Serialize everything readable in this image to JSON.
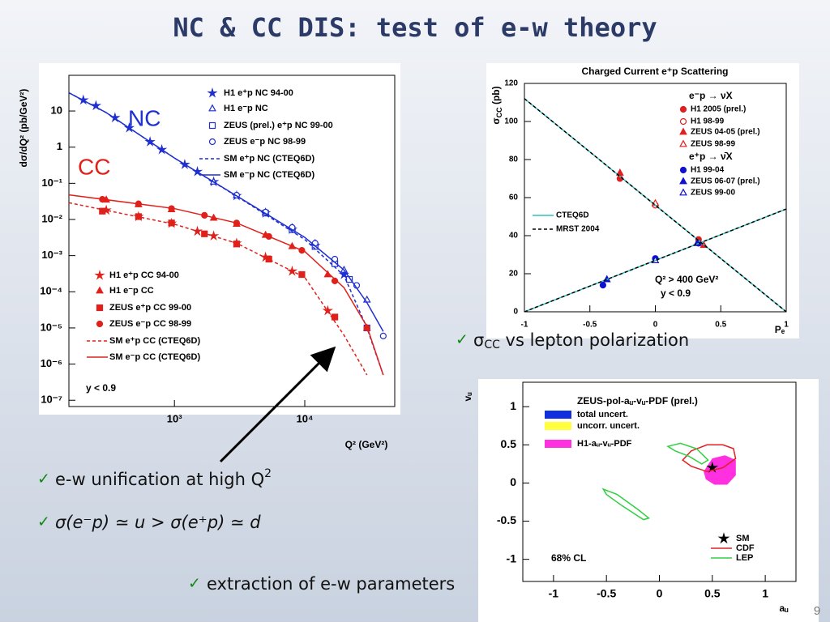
{
  "title": "NC & CC DIS: test of e-w theory",
  "bullets": [
    [
      "σ",
      "CC",
      " vs lepton polarization"
    ],
    [
      "e-w unification at high Q",
      "2"
    ],
    [
      "σ(e⁻p) ≃ u > σ(e⁺p) ≃ d"
    ],
    [
      "extraction of e-w parameters"
    ]
  ],
  "page_number": 9,
  "chart_data": [
    {
      "type": "scatter",
      "xlabel": "Q² (GeV²)",
      "ylabel": "dσ/dQ² (pb/GeV²)",
      "labels": [
        "NC",
        "CC"
      ],
      "annotation": "y < 0.9",
      "xlog": true,
      "ylog": true,
      "xlim": [
        155,
        49000
      ],
      "ylim": [
        6.7e-08,
        97
      ],
      "xticks": [
        {
          "value": 1000,
          "label": "10³"
        },
        {
          "value": 10000,
          "label": "10⁴"
        }
      ],
      "yticks": [
        10,
        1,
        {
          "value": 0.1,
          "label": "10⁻¹"
        },
        {
          "value": 0.01,
          "label": "10⁻²"
        },
        {
          "value": 0.001,
          "label": "10⁻³"
        },
        {
          "value": 0.0001,
          "label": "10⁻⁴"
        },
        {
          "value": 1e-05,
          "label": "10⁻⁵"
        },
        {
          "value": 1e-06,
          "label": "10⁻⁶"
        },
        {
          "value": 1e-07,
          "label": "10⁻⁷"
        }
      ],
      "series": [
        {
          "name": "H1 e⁺p NC 94-00",
          "color": "#1f2fd0",
          "marker": "star",
          "legend": "upper-right",
          "x": [
            200,
            250,
            350,
            450,
            650,
            800,
            1200,
            1500,
            2000,
            3000,
            5000,
            8000,
            12000,
            20000
          ],
          "values": [
            20,
            14,
            6.5,
            3.4,
            1.4,
            0.85,
            0.33,
            0.21,
            0.11,
            0.045,
            0.015,
            0.0053,
            0.0019,
            0.0003
          ]
        },
        {
          "name": "H1 e⁻p NC",
          "color": "#1f2fd0",
          "marker": "triangle-open",
          "legend": "upper-right",
          "x": [
            2000,
            3000,
            5000,
            8000,
            12000,
            20000,
            30000
          ],
          "values": [
            0.11,
            0.046,
            0.016,
            0.006,
            0.0022,
            0.0004,
            6e-05
          ]
        },
        {
          "name": "ZEUS (prel.) e⁺p NC 99-00",
          "color": "#1f2fd0",
          "marker": "square-open",
          "legend": "upper-right",
          "x": [
            5000,
            8000,
            12000,
            17000,
            22000,
            30000
          ],
          "values": [
            0.015,
            0.0052,
            0.0018,
            0.0006,
            0.00022,
            1e-05
          ]
        },
        {
          "name": "ZEUS e⁻p NC 98-99",
          "color": "#1f2fd0",
          "marker": "circle-open",
          "legend": "upper-right",
          "x": [
            3000,
            5000,
            8000,
            12000,
            17000,
            25000,
            40000
          ],
          "values": [
            0.047,
            0.016,
            0.006,
            0.0022,
            0.0008,
            0.00015,
            6e-06
          ]
        },
        {
          "name": "SM e⁺p NC (CTEQ6D)",
          "color": "#1f2fd0",
          "line": "dashed",
          "legend": "upper-right",
          "x": [
            155,
            300,
            1000,
            3000,
            10000,
            20000,
            30000,
            40000
          ],
          "values": [
            32,
            9,
            0.5,
            0.044,
            0.0028,
            0.00028,
            1e-05,
            5e-07
          ]
        },
        {
          "name": "SM e⁻p NC (CTEQ6D)",
          "color": "#1f2fd0",
          "line": "solid",
          "legend": "upper-right",
          "x": [
            155,
            300,
            1000,
            3000,
            10000,
            20000,
            30000,
            40000
          ],
          "values": [
            32,
            9,
            0.5,
            0.045,
            0.0032,
            0.0004,
            5e-05,
            8e-06
          ]
        },
        {
          "name": "H1 e⁺p CC 94-00",
          "color": "#e0201a",
          "marker": "star",
          "legend": "lower-left",
          "x": [
            300,
            530,
            950,
            1500,
            2000,
            3000,
            5000,
            8000,
            15000
          ],
          "values": [
            0.018,
            0.012,
            0.0078,
            0.0047,
            0.0035,
            0.0022,
            0.0009,
            0.00037,
            3e-05
          ]
        },
        {
          "name": "H1 e⁻p CC",
          "color": "#e0201a",
          "marker": "triangle",
          "legend": "lower-left",
          "x": [
            300,
            530,
            950,
            2000,
            3000,
            5000,
            8000,
            15000,
            30000
          ],
          "values": [
            0.035,
            0.026,
            0.019,
            0.011,
            0.0075,
            0.0037,
            0.0018,
            0.0003,
            1e-05
          ]
        },
        {
          "name": "ZEUS e⁺p CC 99-00",
          "color": "#e0201a",
          "marker": "square",
          "legend": "lower-left",
          "x": [
            280,
            530,
            950,
            1700,
            3000,
            5300,
            9500,
            17000
          ],
          "values": [
            0.017,
            0.012,
            0.008,
            0.004,
            0.0021,
            0.0008,
            0.0003,
            2e-05
          ]
        },
        {
          "name": "ZEUS e⁻p CC 98-99",
          "color": "#e0201a",
          "marker": "circle",
          "legend": "lower-left",
          "x": [
            280,
            530,
            950,
            1700,
            3000,
            5300,
            9500,
            17000,
            30000
          ],
          "values": [
            0.036,
            0.027,
            0.02,
            0.013,
            0.008,
            0.0034,
            0.0014,
            0.0002,
            1e-05
          ]
        },
        {
          "name": "SM e⁺p CC (CTEQ6D)",
          "color": "#e0201a",
          "line": "dashed",
          "legend": "lower-left",
          "x": [
            155,
            1000,
            3000,
            10000,
            20000,
            30000
          ],
          "values": [
            0.029,
            0.0074,
            0.0022,
            0.00025,
            6.3e-06,
            5e-07
          ]
        },
        {
          "name": "SM e⁻p CC (CTEQ6D)",
          "color": "#e0201a",
          "line": "solid",
          "legend": "lower-left",
          "x": [
            155,
            1000,
            3000,
            10000,
            20000,
            30000,
            40000
          ],
          "values": [
            0.048,
            0.02,
            0.008,
            0.0013,
            0.00013,
            1.1e-05,
            5e-07
          ]
        }
      ]
    },
    {
      "type": "scatter",
      "title": "Charged Current e⁺p Scattering",
      "xlabel": "Pₑ",
      "ylabel": [
        "σ",
        "CC",
        " (pb)"
      ],
      "legend_groups": [
        "e⁻p → νX",
        "e⁺p → ν̄X"
      ],
      "annotations": [
        "Q² > 400 GeV²",
        "y < 0.9"
      ],
      "xlim": [
        -1,
        1
      ],
      "ylim": [
        0,
        120
      ],
      "xticks": [
        -1,
        -0.5,
        0,
        0.5,
        1
      ],
      "yticks": [
        0,
        20,
        40,
        60,
        80,
        100,
        120
      ],
      "series": [
        {
          "name": "H1 2005 (prel.)",
          "color": "#e02020",
          "marker": "circle",
          "legend": "upper-right",
          "x": [
            -0.27,
            0.33
          ],
          "values": [
            70,
            38
          ]
        },
        {
          "name": "H1 98-99",
          "color": "#e02020",
          "marker": "circle-open",
          "legend": "upper-right",
          "x": [
            0
          ],
          "values": [
            56
          ]
        },
        {
          "name": "ZEUS 04-05 (prel.)",
          "color": "#e02020",
          "marker": "triangle",
          "legend": "upper-right",
          "x": [
            -0.27,
            0.37
          ],
          "values": [
            73,
            35
          ]
        },
        {
          "name": "ZEUS 98-99",
          "color": "#e02020",
          "marker": "triangle-open",
          "legend": "upper-right",
          "x": [
            0
          ],
          "values": [
            57
          ]
        },
        {
          "name": "H1 99-04",
          "color": "#1010d0",
          "marker": "circle",
          "legend": "upper-right",
          "x": [
            -0.4,
            0,
            0.33
          ],
          "values": [
            14,
            28,
            36
          ]
        },
        {
          "name": "ZEUS 06-07 (prel.)",
          "color": "#1010d0",
          "marker": "triangle",
          "legend": "upper-right",
          "x": [
            -0.37,
            0.32
          ],
          "values": [
            17,
            36
          ]
        },
        {
          "name": "ZEUS 99-00",
          "color": "#1010d0",
          "marker": "triangle-open",
          "legend": "upper-right",
          "x": [
            0
          ],
          "values": [
            27
          ]
        },
        {
          "name": "CTEQ6D",
          "color": "#30c0c0",
          "line": "solid",
          "legend": "center-left",
          "x": [
            -1,
            1
          ],
          "values": [
            112,
            0
          ]
        },
        {
          "name": "MRST 2004",
          "color": "#000000",
          "line": "dashed",
          "legend": "center-left",
          "x": [
            -1,
            1
          ],
          "values": [
            112,
            0
          ]
        },
        {
          "color": "#30c0c0",
          "line": "solid",
          "x": [
            -1,
            1
          ],
          "values": [
            0,
            54
          ]
        },
        {
          "color": "#000000",
          "line": "dashed",
          "x": [
            -1,
            1
          ],
          "values": [
            0,
            54
          ]
        }
      ]
    },
    {
      "type": "contour",
      "title": "ZEUS-pol-aᵤ-vᵤ-PDF (prel.)",
      "xlabel": "aᵤ",
      "ylabel": "vᵤ",
      "annotation": "68% CL",
      "xlim": [
        -1.29,
        1.29
      ],
      "ylim": [
        -1.29,
        1.32
      ],
      "xticks": [
        -1,
        -0.5,
        0,
        0.5,
        1
      ],
      "yticks": [
        -1,
        -0.5,
        0,
        0.5,
        1
      ],
      "series": [
        {
          "name": "total uncert.",
          "color": "#1030e0",
          "line": "closed",
          "filled": true,
          "legend": "upper-left",
          "x": [
            0.43,
            0.5,
            0.58,
            0.55,
            0.47
          ],
          "values": [
            0.15,
            0.28,
            0.22,
            0.1,
            0.08
          ]
        },
        {
          "name": "uncorr. uncert.",
          "color": "#ffff40",
          "line": "closed",
          "filled": true,
          "legend": "upper-left",
          "x": [
            0.47,
            0.52,
            0.55,
            0.5
          ],
          "values": [
            0.17,
            0.25,
            0.19,
            0.12
          ]
        },
        {
          "name": "H1-aᵤ-vᵤ-PDF",
          "color": "#ff30e0",
          "line": "closed",
          "filled": true,
          "legend": "upper-left",
          "x": [
            0.42,
            0.5,
            0.62,
            0.72,
            0.72,
            0.64,
            0.52,
            0.44
          ],
          "values": [
            0.15,
            0.32,
            0.36,
            0.3,
            0.1,
            -0.02,
            -0.02,
            0.05
          ]
        },
        {
          "name": "SM",
          "color": "#000000",
          "marker": "star",
          "legend": "lower-right",
          "x": [
            0.5
          ],
          "values": [
            0.2
          ]
        },
        {
          "name": "CDF",
          "color": "#e02020",
          "line": "closed",
          "legend": "lower-right",
          "x": [
            0.22,
            0.3,
            0.45,
            0.6,
            0.7,
            0.72,
            0.6,
            0.45,
            0.3
          ],
          "values": [
            0.3,
            0.42,
            0.5,
            0.5,
            0.45,
            0.32,
            0.2,
            0.15,
            0.22
          ]
        },
        {
          "name": "LEP",
          "color": "#30d040",
          "line": "closed",
          "legend": "lower-right",
          "x": [
            0.08,
            0.2,
            0.35,
            0.46,
            0.4,
            0.28,
            0.15
          ],
          "values": [
            0.48,
            0.52,
            0.45,
            0.3,
            0.25,
            0.35,
            0.42
          ]
        },
        {
          "color": "#30d040",
          "line": "closed",
          "x": [
            -0.53,
            -0.4,
            -0.2,
            -0.1,
            -0.15,
            -0.35,
            -0.5
          ],
          "values": [
            -0.08,
            -0.15,
            -0.35,
            -0.46,
            -0.48,
            -0.3,
            -0.15
          ]
        }
      ]
    }
  ]
}
